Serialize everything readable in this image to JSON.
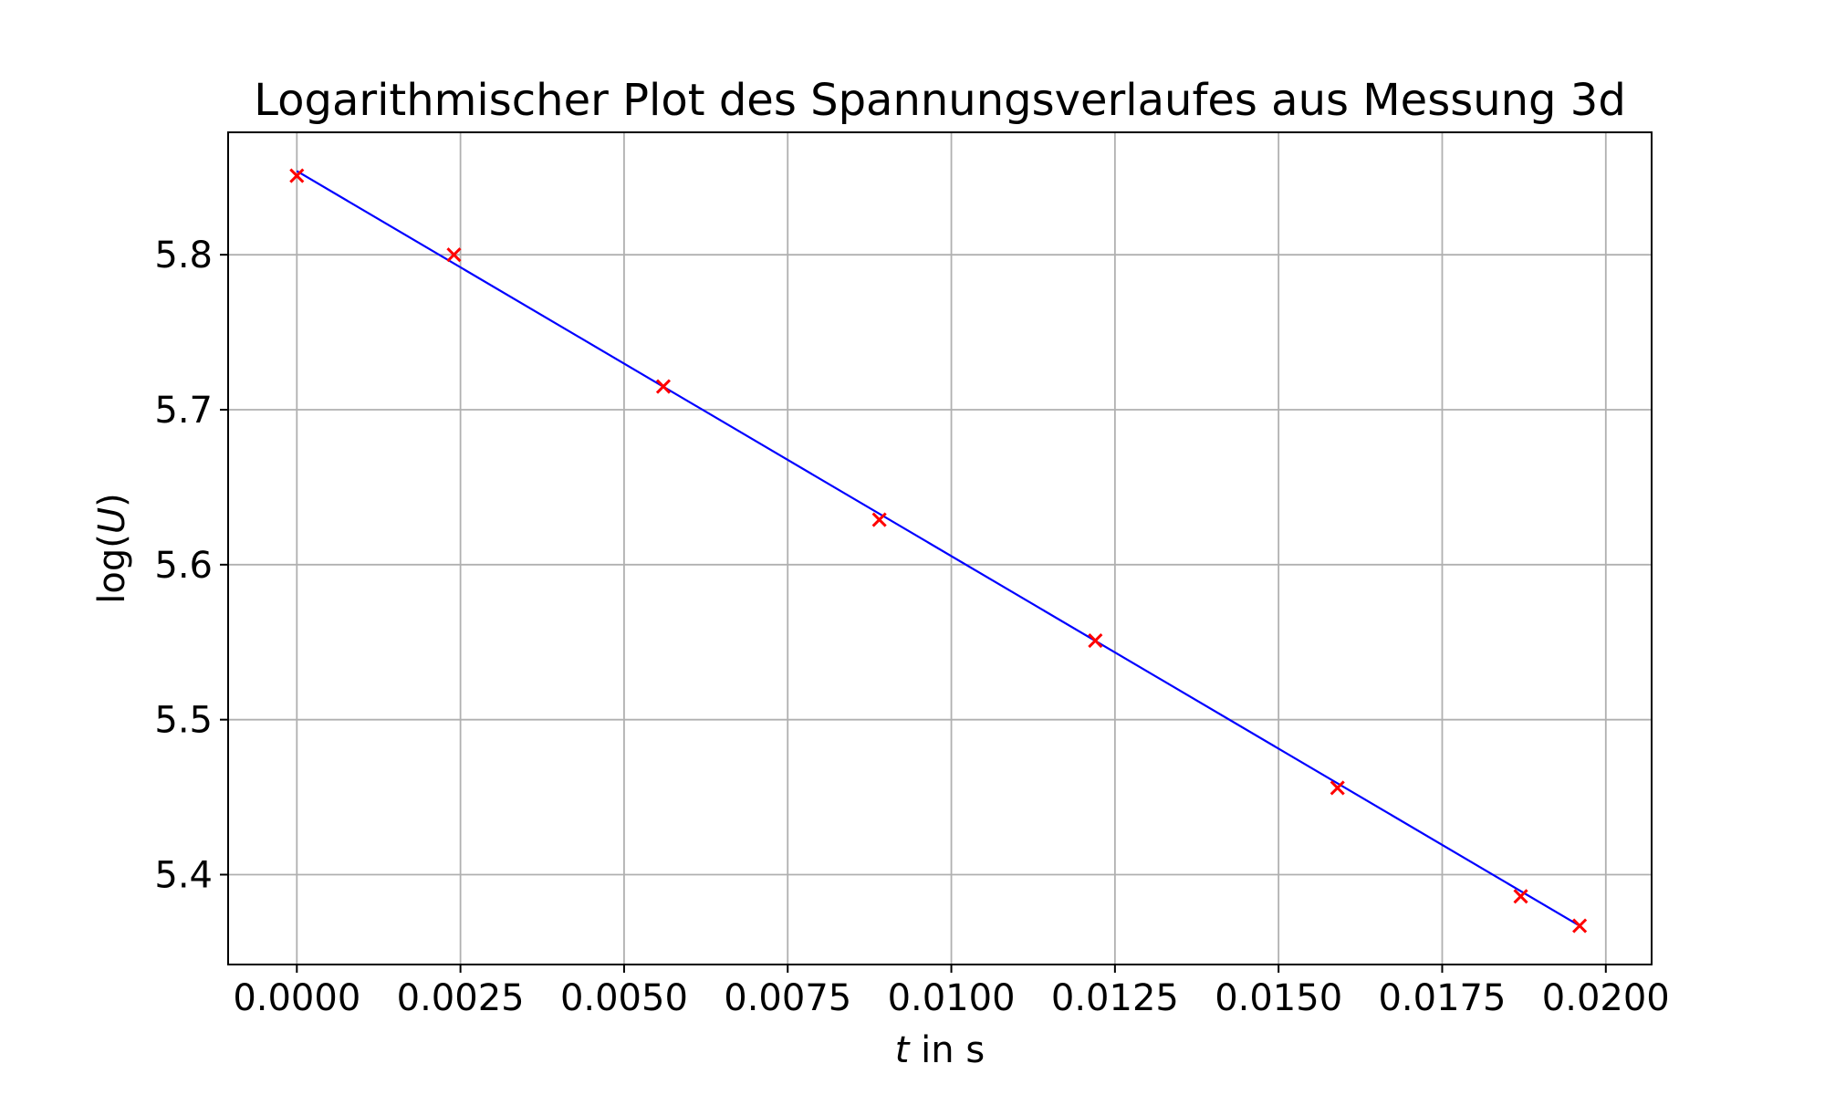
{
  "chart_data": {
    "type": "scatter",
    "title": "Logarithmischer Plot des Spannungsverlaufes aus Messung 3d",
    "xlabel": {
      "var": "t",
      "rest": " in s"
    },
    "ylabel": {
      "pre": "log(",
      "var": "U",
      "post": ")"
    },
    "xlim": [
      -0.00105,
      0.0207
    ],
    "ylim": [
      5.342,
      5.879
    ],
    "x_ticks": [
      0.0,
      0.0025,
      0.005,
      0.0075,
      0.01,
      0.0125,
      0.015,
      0.0175,
      0.02
    ],
    "x_tick_labels": [
      "0.0000",
      "0.0025",
      "0.0050",
      "0.0075",
      "0.0100",
      "0.0125",
      "0.0150",
      "0.0175",
      "0.0200"
    ],
    "y_ticks": [
      5.4,
      5.5,
      5.6,
      5.7,
      5.8
    ],
    "y_tick_labels": [
      "5.4",
      "5.5",
      "5.6",
      "5.7",
      "5.8"
    ],
    "grid": true,
    "series": [
      {
        "kind": "scatter",
        "marker": "x",
        "color": "#ff0000",
        "x": [
          0.0,
          0.0024,
          0.0056,
          0.0089,
          0.0122,
          0.0159,
          0.0187,
          0.0196
        ],
        "y": [
          5.851,
          5.8,
          5.715,
          5.629,
          5.551,
          5.456,
          5.386,
          5.367
        ]
      },
      {
        "kind": "line",
        "color": "#0000ff",
        "x": [
          0.0,
          0.0196
        ],
        "y": [
          5.854,
          5.367
        ]
      }
    ]
  }
}
